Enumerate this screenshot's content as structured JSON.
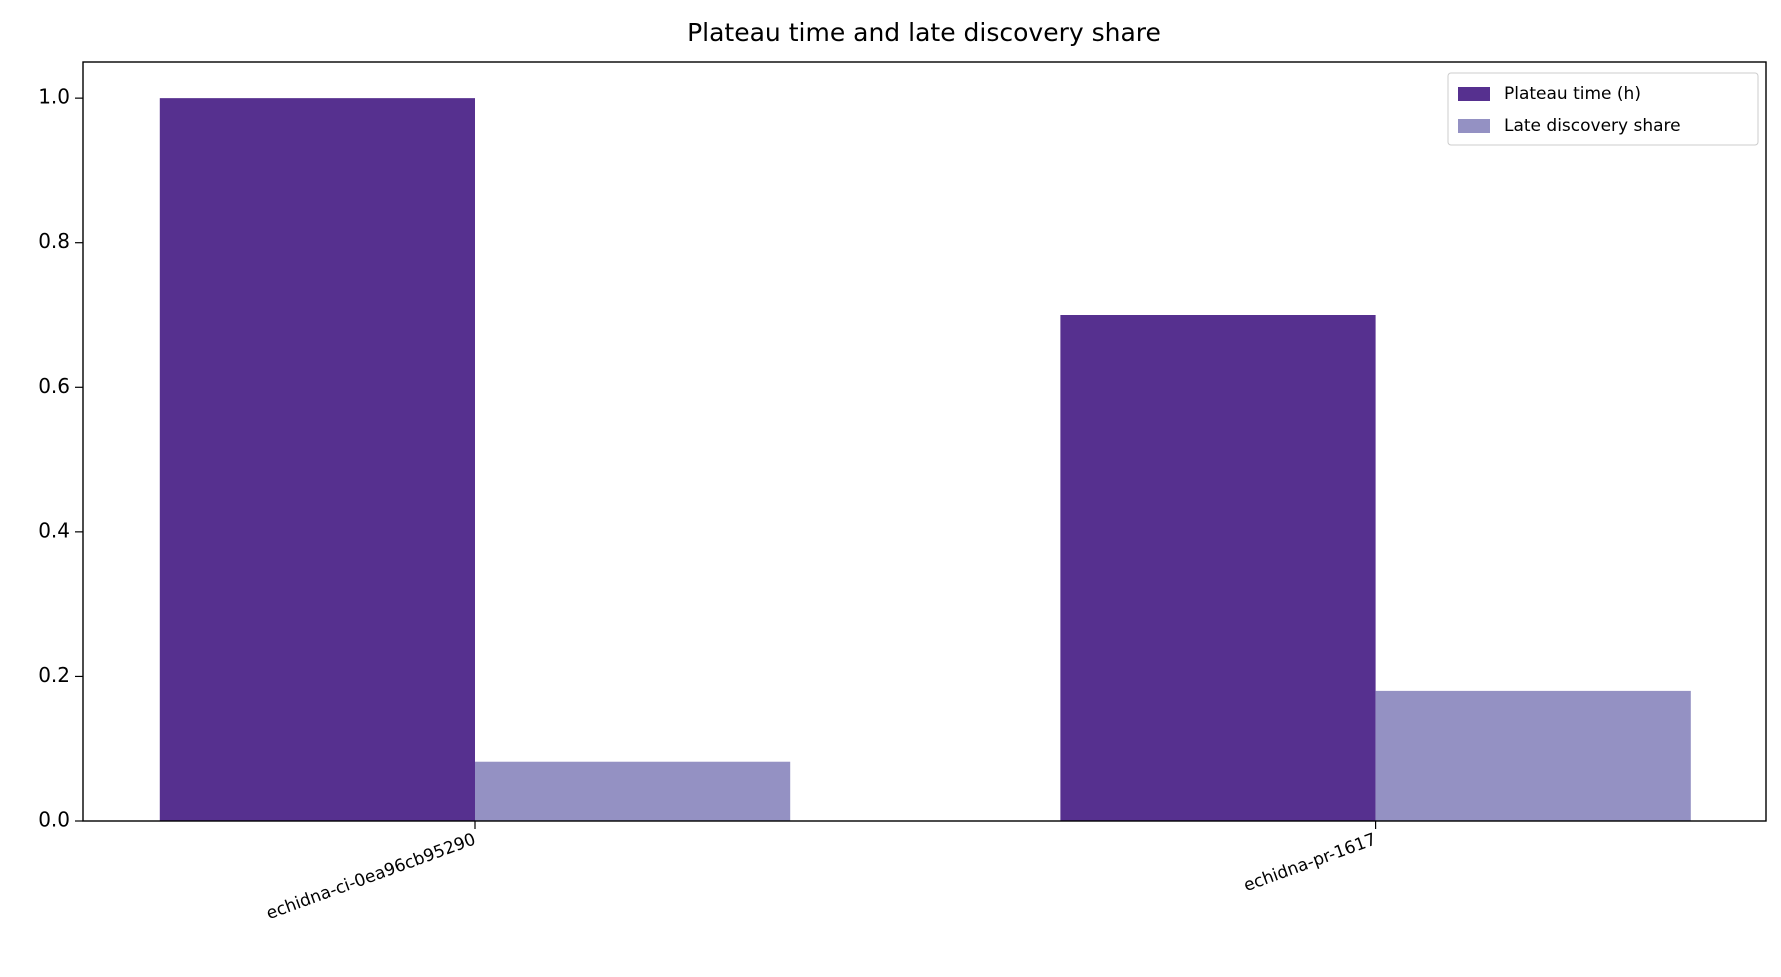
{
  "chart_data": {
    "type": "bar",
    "title": "Plateau time and late discovery share",
    "categories": [
      "echidna-ci-0ea96cb95290",
      "echidna-pr-1617"
    ],
    "series": [
      {
        "name": "Plateau time (h)",
        "color": "#56308f",
        "values": [
          1.0,
          0.7
        ]
      },
      {
        "name": "Late discovery share",
        "color": "#9491c3",
        "values": [
          0.082,
          0.18
        ]
      }
    ],
    "ylim": [
      0,
      1.05
    ],
    "yticks": [
      {
        "value": 0,
        "label": "0.0"
      },
      0.2,
      0.4,
      0.6,
      0.8,
      {
        "value": 1,
        "label": "1.0"
      }
    ],
    "legend": "upper right",
    "grid": false
  }
}
